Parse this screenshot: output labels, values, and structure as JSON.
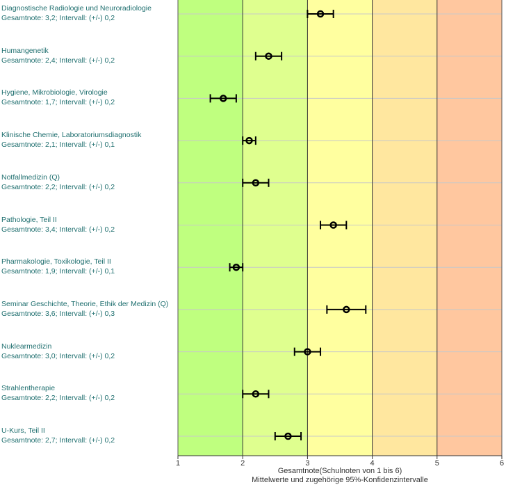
{
  "chart_data": {
    "type": "scatter",
    "orientation": "horizontal",
    "xlabel": "Gesamtnote(Schulnoten von 1 bis 6)",
    "xlabel_sub": "Mittelwerte und zugehörige 95%-Konfidenzintervalle",
    "xlim": [
      1,
      6
    ],
    "xticks": [
      "1",
      "2",
      "3",
      "4",
      "5",
      "6"
    ],
    "grid": true,
    "bands": [
      {
        "from": 1,
        "to": 2,
        "color": "#bfff7f"
      },
      {
        "from": 2,
        "to": 3,
        "color": "#dfff8f"
      },
      {
        "from": 3,
        "to": 4,
        "color": "#ffff9f"
      },
      {
        "from": 4,
        "to": 5,
        "color": "#ffe79f"
      },
      {
        "from": 5,
        "to": 6,
        "color": "#ffc79f"
      }
    ],
    "items": [
      {
        "name": "Diagnostische Radiologie und Neuroradiologie",
        "note_text": "Gesamtnote: 3,2;  Intervall: (+/-) 0,2",
        "value": 3.2,
        "ci": 0.2
      },
      {
        "name": "Humangenetik",
        "note_text": "Gesamtnote: 2,4;  Intervall: (+/-) 0,2",
        "value": 2.4,
        "ci": 0.2
      },
      {
        "name": "Hygiene, Mikrobiologie, Virologie",
        "note_text": "Gesamtnote: 1,7;  Intervall: (+/-) 0,2",
        "value": 1.7,
        "ci": 0.2
      },
      {
        "name": "Klinische Chemie, Laboratoriumsdiagnostik",
        "note_text": "Gesamtnote: 2,1;  Intervall: (+/-) 0,1",
        "value": 2.1,
        "ci": 0.1
      },
      {
        "name": "Notfallmedizin (Q)",
        "note_text": "Gesamtnote: 2,2;  Intervall: (+/-) 0,2",
        "value": 2.2,
        "ci": 0.2
      },
      {
        "name": "Pathologie, Teil II",
        "note_text": "Gesamtnote: 3,4;  Intervall: (+/-) 0,2",
        "value": 3.4,
        "ci": 0.2
      },
      {
        "name": "Pharmakologie, Toxikologie, Teil II",
        "note_text": "Gesamtnote: 1,9;  Intervall: (+/-) 0,1",
        "value": 1.9,
        "ci": 0.1
      },
      {
        "name": "Seminar Geschichte, Theorie, Ethik der Medizin (Q)",
        "note_text": "Gesamtnote: 3,6;  Intervall: (+/-) 0,3",
        "value": 3.6,
        "ci": 0.3
      },
      {
        "name": "Nuklearmedizin",
        "note_text": "Gesamtnote: 3,0;  Intervall: (+/-) 0,2",
        "value": 3.0,
        "ci": 0.2
      },
      {
        "name": "Strahlentherapie",
        "note_text": "Gesamtnote: 2,2;  Intervall: (+/-) 0,2",
        "value": 2.2,
        "ci": 0.2
      },
      {
        "name": "U-Kurs, Teil II",
        "note_text": "Gesamtnote: 2,7;  Intervall: (+/-) 0,2",
        "value": 2.7,
        "ci": 0.2
      }
    ]
  }
}
